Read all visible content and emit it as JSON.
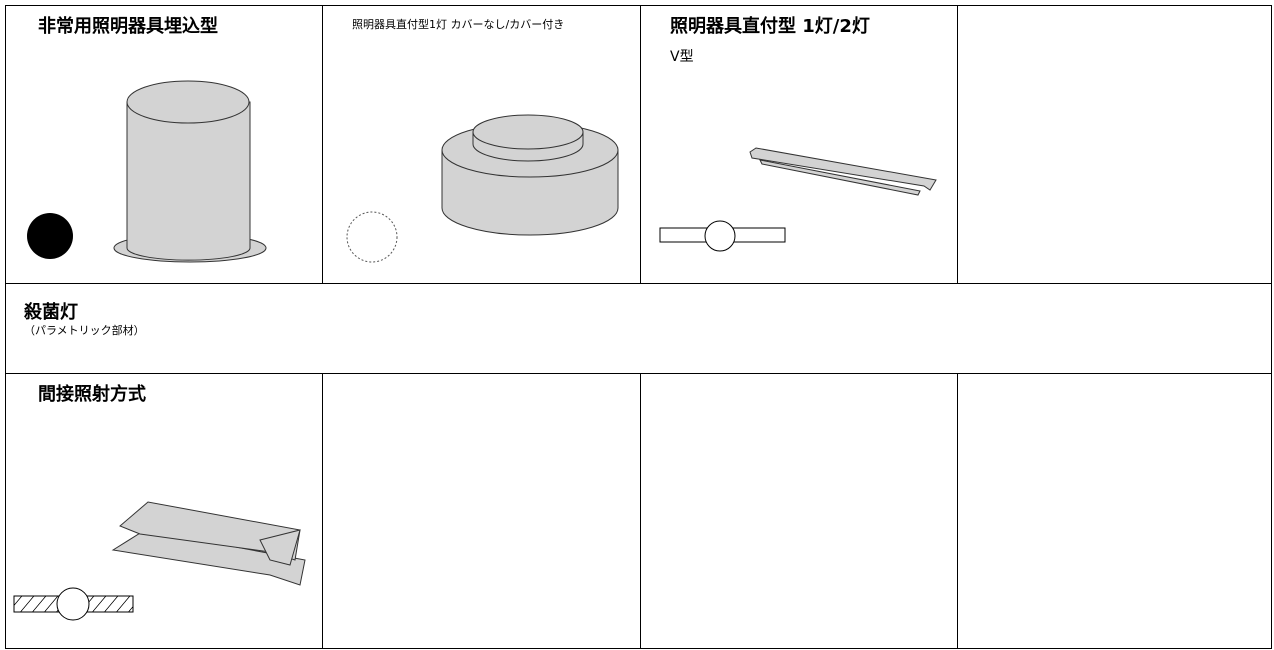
{
  "cells": [
    {
      "title": "非常用照明器具埋込型"
    },
    {
      "title": "照明器具直付型1灯 カバーなし/カバー付き"
    },
    {
      "title": "照明器具直付型 1灯/2灯",
      "subtitle": "V型"
    },
    {
      "title": "殺菌灯",
      "subtitle": "（パラメトリック部材）"
    },
    {
      "title": "間接照射方式"
    }
  ]
}
